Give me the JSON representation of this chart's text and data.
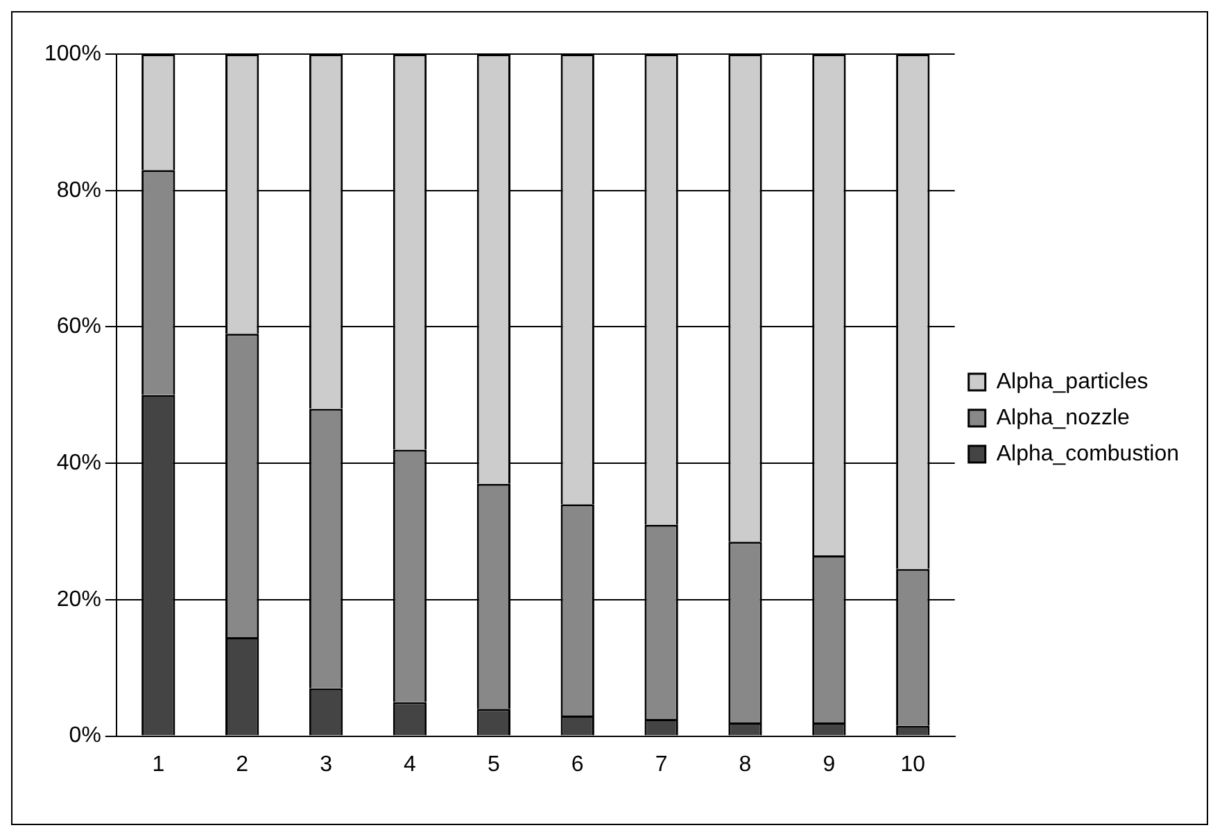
{
  "chart_data": {
    "type": "bar",
    "stacked": true,
    "categories": [
      "1",
      "2",
      "3",
      "4",
      "5",
      "6",
      "7",
      "8",
      "9",
      "10"
    ],
    "series": [
      {
        "name": "Alpha_combustion",
        "color": "#444444",
        "values": [
          50,
          14.5,
          7,
          5,
          4,
          3,
          2.5,
          2,
          2,
          1.5
        ]
      },
      {
        "name": "Alpha_nozzle",
        "color": "#888888",
        "values": [
          33,
          44.5,
          41,
          37,
          33,
          31,
          28.5,
          26.5,
          24.5,
          23
        ]
      },
      {
        "name": "Alpha_particles",
        "color": "#cccccc",
        "values": [
          17,
          41,
          52,
          58,
          63,
          66,
          69,
          71.5,
          73.5,
          75.5
        ]
      }
    ],
    "ylim": [
      0,
      100
    ],
    "yticks": [
      {
        "value": 0,
        "label": "0%"
      },
      {
        "value": 20,
        "label": "20%"
      },
      {
        "value": 40,
        "label": "40%"
      },
      {
        "value": 60,
        "label": "60%"
      },
      {
        "value": 80,
        "label": "80%"
      },
      {
        "value": 100,
        "label": "100%"
      }
    ],
    "grid": "y",
    "legend": "right"
  }
}
